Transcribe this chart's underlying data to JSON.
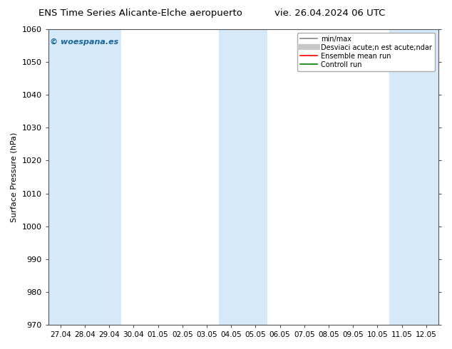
{
  "title_left": "ENS Time Series Alicante-Elche aeropuerto",
  "title_right": "vie. 26.04.2024 06 UTC",
  "ylabel": "Surface Pressure (hPa)",
  "ylim": [
    970,
    1060
  ],
  "yticks": [
    970,
    980,
    990,
    1000,
    1010,
    1020,
    1030,
    1040,
    1050,
    1060
  ],
  "x_labels": [
    "27.04",
    "28.04",
    "29.04",
    "30.04",
    "01.05",
    "02.05",
    "03.05",
    "04.05",
    "05.05",
    "06.05",
    "07.05",
    "08.05",
    "09.05",
    "10.05",
    "11.05",
    "12.05"
  ],
  "bg_color": "#ffffff",
  "fill_color": "#d6e9f8",
  "stripe_indices": [
    0,
    1,
    2,
    7,
    8,
    14,
    15
  ],
  "watermark": "© woespana.es",
  "watermark_color": "#1a6699",
  "legend_labels": [
    "min/max",
    "Desviaci acute;n est acute;ndar",
    "Ensemble mean run",
    "Controll run"
  ],
  "legend_colors": [
    "#888888",
    "#c8c8c8",
    "#ff0000",
    "#008000"
  ],
  "legend_lws": [
    1.2,
    6,
    1.2,
    1.2
  ],
  "title_fontsize": 9.5,
  "ylabel_fontsize": 8,
  "tick_fontsize": 8,
  "xtick_fontsize": 7.5
}
